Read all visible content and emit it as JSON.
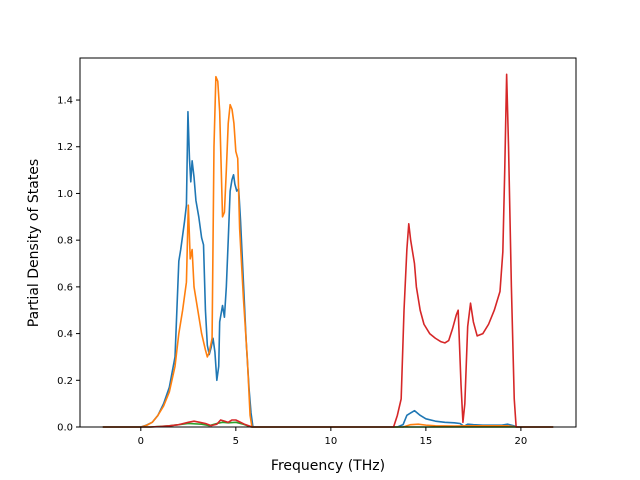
{
  "chart_data": {
    "type": "line",
    "title": "",
    "xlabel": "Frequency (THz)",
    "ylabel": "Partial Density of States",
    "xlim": [
      -3.2,
      22.9
    ],
    "ylim": [
      0,
      1.58
    ],
    "xticks": [
      0,
      5,
      10,
      15,
      20
    ],
    "yticks": [
      0.0,
      0.2,
      0.4,
      0.6,
      0.8,
      1.0,
      1.2,
      1.4
    ],
    "xtick_labels": [
      "0",
      "5",
      "10",
      "15",
      "20"
    ],
    "ytick_labels": [
      "0.0",
      "0.2",
      "0.4",
      "0.6",
      "0.8",
      "1.0",
      "1.2",
      "1.4"
    ],
    "grid": false,
    "legend": false,
    "series": [
      {
        "color": "#1f77b4",
        "points": [
          [
            -2.0,
            0
          ],
          [
            0.0,
            0
          ],
          [
            0.3,
            0.008
          ],
          [
            0.6,
            0.02
          ],
          [
            0.9,
            0.05
          ],
          [
            1.2,
            0.1
          ],
          [
            1.5,
            0.17
          ],
          [
            1.8,
            0.3
          ],
          [
            2.0,
            0.71
          ],
          [
            2.1,
            0.76
          ],
          [
            2.2,
            0.82
          ],
          [
            2.3,
            0.88
          ],
          [
            2.4,
            0.95
          ],
          [
            2.48,
            1.35
          ],
          [
            2.56,
            1.15
          ],
          [
            2.63,
            1.05
          ],
          [
            2.7,
            1.14
          ],
          [
            2.8,
            1.07
          ],
          [
            2.9,
            0.97
          ],
          [
            3.05,
            0.9
          ],
          [
            3.2,
            0.81
          ],
          [
            3.3,
            0.78
          ],
          [
            3.4,
            0.5
          ],
          [
            3.5,
            0.35
          ],
          [
            3.6,
            0.31
          ],
          [
            3.7,
            0.34
          ],
          [
            3.8,
            0.38
          ],
          [
            3.9,
            0.32
          ],
          [
            4.0,
            0.2
          ],
          [
            4.1,
            0.26
          ],
          [
            4.15,
            0.45
          ],
          [
            4.3,
            0.52
          ],
          [
            4.4,
            0.47
          ],
          [
            4.5,
            0.6
          ],
          [
            4.6,
            0.8
          ],
          [
            4.7,
            1.01
          ],
          [
            4.8,
            1.06
          ],
          [
            4.88,
            1.08
          ],
          [
            4.95,
            1.04
          ],
          [
            5.05,
            1.01
          ],
          [
            5.15,
            1.02
          ],
          [
            5.25,
            0.88
          ],
          [
            5.4,
            0.62
          ],
          [
            5.55,
            0.36
          ],
          [
            5.7,
            0.16
          ],
          [
            5.8,
            0.06
          ],
          [
            5.9,
            0
          ],
          [
            13.5,
            0
          ],
          [
            13.8,
            0.01
          ],
          [
            14.0,
            0.05
          ],
          [
            14.2,
            0.06
          ],
          [
            14.4,
            0.07
          ],
          [
            14.7,
            0.05
          ],
          [
            15.0,
            0.035
          ],
          [
            15.5,
            0.025
          ],
          [
            16.0,
            0.02
          ],
          [
            16.5,
            0.018
          ],
          [
            16.8,
            0.015
          ],
          [
            17.0,
            0.003
          ],
          [
            17.2,
            0.012
          ],
          [
            17.5,
            0.01
          ],
          [
            18.0,
            0.008
          ],
          [
            19.0,
            0.008
          ],
          [
            19.3,
            0.012
          ],
          [
            19.6,
            0.006
          ],
          [
            19.8,
            0.0
          ],
          [
            21.7,
            0
          ]
        ]
      },
      {
        "color": "#ff7f0e",
        "points": [
          [
            -2.0,
            0
          ],
          [
            0.0,
            0
          ],
          [
            0.3,
            0.007
          ],
          [
            0.6,
            0.02
          ],
          [
            0.9,
            0.05
          ],
          [
            1.2,
            0.09
          ],
          [
            1.5,
            0.15
          ],
          [
            1.8,
            0.26
          ],
          [
            2.0,
            0.4
          ],
          [
            2.2,
            0.5
          ],
          [
            2.4,
            0.62
          ],
          [
            2.5,
            0.95
          ],
          [
            2.6,
            0.72
          ],
          [
            2.7,
            0.76
          ],
          [
            2.8,
            0.6
          ],
          [
            3.0,
            0.5
          ],
          [
            3.2,
            0.4
          ],
          [
            3.4,
            0.33
          ],
          [
            3.5,
            0.3
          ],
          [
            3.6,
            0.32
          ],
          [
            3.75,
            0.38
          ],
          [
            3.85,
            1.2
          ],
          [
            3.95,
            1.5
          ],
          [
            4.05,
            1.48
          ],
          [
            4.15,
            1.35
          ],
          [
            4.3,
            0.9
          ],
          [
            4.4,
            0.92
          ],
          [
            4.5,
            1.1
          ],
          [
            4.6,
            1.3
          ],
          [
            4.7,
            1.38
          ],
          [
            4.8,
            1.36
          ],
          [
            4.9,
            1.3
          ],
          [
            5.0,
            1.18
          ],
          [
            5.1,
            1.15
          ],
          [
            5.2,
            0.85
          ],
          [
            5.4,
            0.55
          ],
          [
            5.6,
            0.3
          ],
          [
            5.75,
            0.05
          ],
          [
            5.85,
            0
          ],
          [
            13.8,
            0
          ],
          [
            14.2,
            0.01
          ],
          [
            14.6,
            0.012
          ],
          [
            15.0,
            0.008
          ],
          [
            15.5,
            0.005
          ],
          [
            16.5,
            0.004
          ],
          [
            17.2,
            0.005
          ],
          [
            19.3,
            0.005
          ],
          [
            19.6,
            0.002
          ],
          [
            19.8,
            0
          ],
          [
            21.7,
            0
          ]
        ]
      },
      {
        "color": "#2ca02c",
        "points": [
          [
            -2.0,
            0
          ],
          [
            0.5,
            0
          ],
          [
            1.5,
            0.005
          ],
          [
            2.5,
            0.015
          ],
          [
            3.2,
            0.012
          ],
          [
            3.6,
            0.006
          ],
          [
            4.0,
            0.015
          ],
          [
            4.3,
            0.02
          ],
          [
            4.6,
            0.018
          ],
          [
            5.0,
            0.02
          ],
          [
            5.4,
            0.012
          ],
          [
            5.8,
            0
          ],
          [
            13.5,
            0
          ],
          [
            21.7,
            0
          ]
        ]
      },
      {
        "color": "#d62728",
        "points": [
          [
            -2.0,
            0
          ],
          [
            0.5,
            0
          ],
          [
            1.0,
            0.002
          ],
          [
            1.5,
            0.005
          ],
          [
            2.0,
            0.01
          ],
          [
            2.5,
            0.02
          ],
          [
            2.8,
            0.025
          ],
          [
            3.1,
            0.02
          ],
          [
            3.4,
            0.015
          ],
          [
            3.7,
            0.006
          ],
          [
            4.0,
            0.012
          ],
          [
            4.2,
            0.03
          ],
          [
            4.4,
            0.025
          ],
          [
            4.6,
            0.02
          ],
          [
            4.8,
            0.03
          ],
          [
            5.0,
            0.03
          ],
          [
            5.2,
            0.022
          ],
          [
            5.45,
            0.012
          ],
          [
            5.7,
            0.005
          ],
          [
            5.85,
            0
          ],
          [
            13.3,
            0
          ],
          [
            13.5,
            0.05
          ],
          [
            13.7,
            0.12
          ],
          [
            13.85,
            0.5
          ],
          [
            14.0,
            0.76
          ],
          [
            14.1,
            0.87
          ],
          [
            14.2,
            0.8
          ],
          [
            14.3,
            0.75
          ],
          [
            14.4,
            0.7
          ],
          [
            14.5,
            0.6
          ],
          [
            14.7,
            0.5
          ],
          [
            14.9,
            0.44
          ],
          [
            15.2,
            0.4
          ],
          [
            15.5,
            0.38
          ],
          [
            15.8,
            0.365
          ],
          [
            16.0,
            0.36
          ],
          [
            16.2,
            0.37
          ],
          [
            16.4,
            0.42
          ],
          [
            16.6,
            0.48
          ],
          [
            16.7,
            0.5
          ],
          [
            16.85,
            0.18
          ],
          [
            16.95,
            0.02
          ],
          [
            17.05,
            0.1
          ],
          [
            17.2,
            0.43
          ],
          [
            17.35,
            0.53
          ],
          [
            17.5,
            0.45
          ],
          [
            17.7,
            0.39
          ],
          [
            18.0,
            0.4
          ],
          [
            18.3,
            0.44
          ],
          [
            18.6,
            0.5
          ],
          [
            18.9,
            0.58
          ],
          [
            19.05,
            0.75
          ],
          [
            19.15,
            1.1
          ],
          [
            19.25,
            1.51
          ],
          [
            19.35,
            1.2
          ],
          [
            19.5,
            0.6
          ],
          [
            19.65,
            0.12
          ],
          [
            19.75,
            0
          ],
          [
            21.7,
            0
          ]
        ]
      }
    ]
  }
}
